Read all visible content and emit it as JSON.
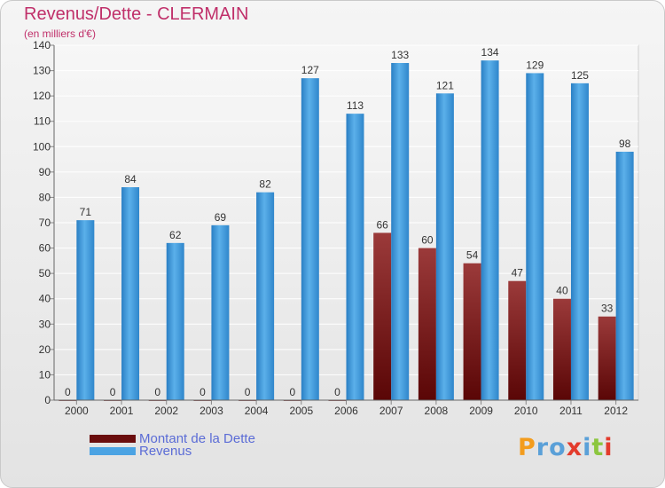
{
  "chart_data": {
    "type": "bar",
    "title": "Revenus/Dette - CLERMAIN",
    "subtitle": "(en milliers d'€)",
    "categories": [
      "2000",
      "2001",
      "2002",
      "2003",
      "2004",
      "2005",
      "2006",
      "2007",
      "2008",
      "2009",
      "2010",
      "2011",
      "2012"
    ],
    "series": [
      {
        "name": "Montant de la Dette",
        "color": "#7a1a1a",
        "values": [
          0,
          0,
          0,
          0,
          0,
          0,
          0,
          66,
          60,
          54,
          47,
          40,
          33
        ]
      },
      {
        "name": "Revenus",
        "color": "#4ba3e3",
        "values": [
          71,
          84,
          62,
          69,
          82,
          127,
          113,
          133,
          121,
          134,
          129,
          125,
          98
        ]
      }
    ],
    "ylim": [
      0,
      140
    ],
    "yticks": [
      0,
      10,
      20,
      30,
      40,
      50,
      60,
      70,
      80,
      90,
      100,
      110,
      120,
      130,
      140
    ],
    "grid": true,
    "legend_position": "bottom-left"
  },
  "logo_text": "Proxiti",
  "logo_colors": [
    "#f39c1d",
    "#5aa0d8",
    "#5aa0d8",
    "#e33b2c",
    "#5aa0d8",
    "#8cc63f",
    "#e33b2c"
  ]
}
